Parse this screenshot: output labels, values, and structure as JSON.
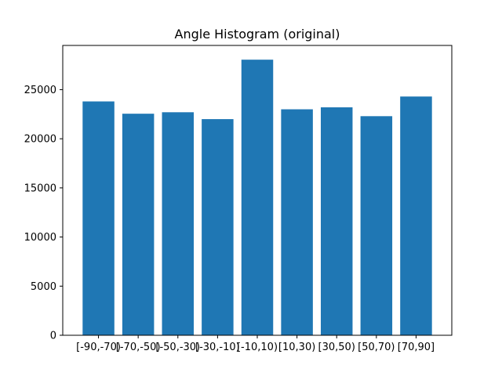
{
  "chart_data": {
    "type": "bar",
    "title": "Angle Histogram (original)",
    "xlabel": "",
    "ylabel": "",
    "categories": [
      "[-90,-70)",
      "[-70,-50)",
      "[-50,-30)",
      "[-30,-10)",
      "[-10,10)",
      "[10,30)",
      "[30,50)",
      "[50,70)",
      "[70,90]"
    ],
    "values": [
      23800,
      22550,
      22700,
      22000,
      28050,
      23000,
      23200,
      22300,
      24300
    ],
    "ylim": [
      0,
      29500
    ],
    "yticks": [
      0,
      5000,
      10000,
      15000,
      20000,
      25000
    ],
    "bar_color": "#1f77b4",
    "grid": false,
    "legend": "none"
  }
}
